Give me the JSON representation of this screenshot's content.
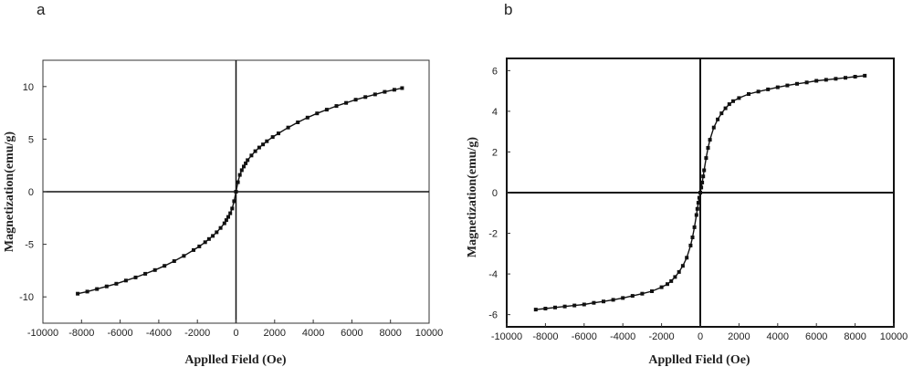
{
  "chart_data": [
    {
      "type": "scatter",
      "panel_label": "a",
      "xlabel": "Applled Field (Oe)",
      "ylabel": "Magnetization(emu/g)",
      "xlim": [
        -10000,
        10000
      ],
      "ylim": [
        -12.5,
        12.5
      ],
      "xticks": [
        -10000,
        -8000,
        -6000,
        -4000,
        -2000,
        0,
        2000,
        4000,
        6000,
        8000,
        10000
      ],
      "yticks": [
        10,
        5,
        0,
        -5,
        -10
      ],
      "grid": false,
      "x": [
        -8200,
        -7700,
        -7200,
        -6700,
        -6200,
        -5700,
        -5200,
        -4700,
        -4200,
        -3700,
        -3200,
        -2700,
        -2200,
        -1900,
        -1600,
        -1400,
        -1200,
        -1000,
        -800,
        -600,
        -500,
        -400,
        -300,
        -200,
        -100,
        0,
        100,
        200,
        300,
        400,
        500,
        600,
        800,
        1000,
        1200,
        1400,
        1600,
        1900,
        2200,
        2700,
        3200,
        3700,
        4200,
        4700,
        5200,
        5700,
        6200,
        6700,
        7200,
        7700,
        8200,
        8600
      ],
      "y": [
        -9.7,
        -9.5,
        -9.25,
        -9.0,
        -8.75,
        -8.45,
        -8.15,
        -7.8,
        -7.45,
        -7.05,
        -6.6,
        -6.1,
        -5.55,
        -5.2,
        -4.8,
        -4.5,
        -4.2,
        -3.85,
        -3.45,
        -3.0,
        -2.7,
        -2.4,
        -2.05,
        -1.6,
        -0.9,
        0.0,
        0.9,
        1.6,
        2.05,
        2.4,
        2.7,
        3.0,
        3.45,
        3.85,
        4.2,
        4.5,
        4.8,
        5.2,
        5.55,
        6.1,
        6.6,
        7.05,
        7.45,
        7.8,
        8.15,
        8.45,
        8.75,
        9.0,
        9.25,
        9.5,
        9.7,
        9.85
      ]
    },
    {
      "type": "scatter",
      "panel_label": "b",
      "xlabel": "Applled Field (Oe)",
      "ylabel": "Magnetization(emu/g)",
      "xlim": [
        -10000,
        10000
      ],
      "ylim": [
        -6.6,
        6.6
      ],
      "xticks": [
        -10000,
        -8000,
        -6000,
        -4000,
        -2000,
        0,
        2000,
        4000,
        6000,
        8000,
        10000
      ],
      "yticks": [
        6,
        4,
        2,
        0,
        -2,
        -4,
        -6
      ],
      "grid": false,
      "x": [
        -8500,
        -8000,
        -7500,
        -7000,
        -6500,
        -6000,
        -5500,
        -5000,
        -4500,
        -4000,
        -3500,
        -3000,
        -2500,
        -2000,
        -1700,
        -1500,
        -1300,
        -1100,
        -900,
        -700,
        -500,
        -400,
        -300,
        -200,
        -150,
        -100,
        -50,
        0,
        50,
        100,
        150,
        200,
        300,
        400,
        500,
        700,
        900,
        1100,
        1300,
        1500,
        1700,
        2000,
        2500,
        3000,
        3500,
        4000,
        4500,
        5000,
        5500,
        6000,
        6500,
        7000,
        7500,
        8000,
        8500
      ],
      "y": [
        -5.75,
        -5.7,
        -5.65,
        -5.6,
        -5.55,
        -5.5,
        -5.42,
        -5.35,
        -5.27,
        -5.18,
        -5.08,
        -4.97,
        -4.85,
        -4.65,
        -4.5,
        -4.35,
        -4.15,
        -3.9,
        -3.6,
        -3.2,
        -2.6,
        -2.2,
        -1.7,
        -1.1,
        -0.8,
        -0.5,
        -0.25,
        0.0,
        0.25,
        0.5,
        0.8,
        1.1,
        1.7,
        2.2,
        2.6,
        3.2,
        3.6,
        3.9,
        4.15,
        4.35,
        4.5,
        4.65,
        4.85,
        4.97,
        5.08,
        5.18,
        5.27,
        5.35,
        5.42,
        5.5,
        5.55,
        5.6,
        5.65,
        5.7,
        5.75
      ]
    }
  ]
}
